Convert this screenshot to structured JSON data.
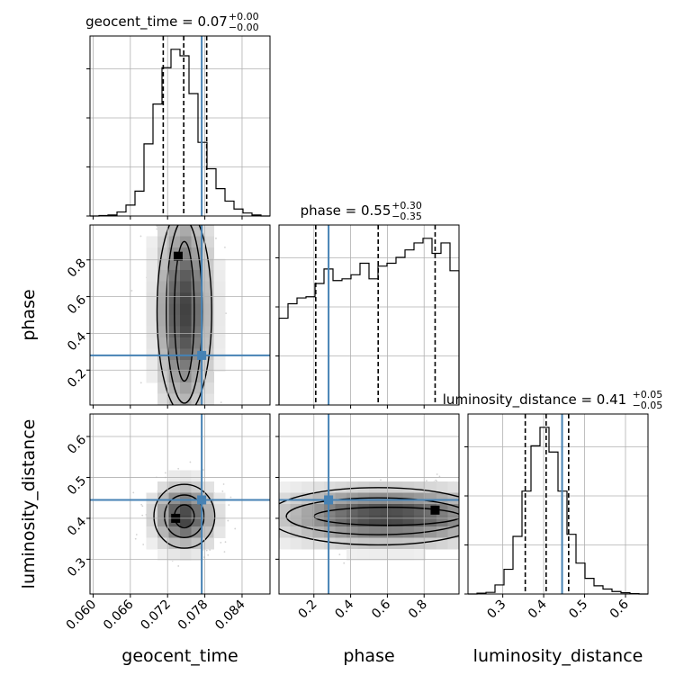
{
  "chart_data": {
    "type": "corner",
    "parameters": [
      {
        "name": "geocent_time",
        "range": [
          0.0595,
          0.0885
        ],
        "ticks": [
          0.06,
          0.066,
          0.072,
          0.078,
          0.084
        ],
        "tick_labels": [
          "0.060",
          "0.066",
          "0.072",
          "0.078",
          "0.084"
        ],
        "truth": 0.0775,
        "quantiles": [
          0.0713,
          0.0746,
          0.0783
        ],
        "median": 0.0746
      },
      {
        "name": "phase",
        "range": [
          0.01,
          0.99
        ],
        "ticks": [
          0.2,
          0.4,
          0.6,
          0.8
        ],
        "tick_labels": [
          "0.2",
          "0.4",
          "0.6",
          "0.8"
        ],
        "truth": 0.28,
        "quantiles": [
          0.21,
          0.55,
          0.86
        ],
        "median": 0.55
      },
      {
        "name": "luminosity_distance",
        "range": [
          0.215,
          0.655
        ],
        "ticks": [
          0.3,
          0.4,
          0.5,
          0.6
        ],
        "tick_labels": [
          "0.3",
          "0.4",
          "0.5",
          "0.6"
        ],
        "truth": 0.445,
        "quantiles": [
          0.355,
          0.406,
          0.461
        ],
        "median": 0.406
      }
    ],
    "titles": [
      {
        "label": "geocent_time = 0.07",
        "sup": "+0.00",
        "sub": "−0.00"
      },
      {
        "label": "phase = 0.55",
        "sup": "+0.30",
        "sub": "−0.35"
      },
      {
        "label": "luminosity_distance = 0.41",
        "sup": "+0.05",
        "sub": "−0.05"
      }
    ],
    "histograms": [
      {
        "param": "geocent_time",
        "edges": [
          0.0595,
          0.06095,
          0.0624,
          0.06385,
          0.0653,
          0.06675,
          0.0682,
          0.06965,
          0.0711,
          0.07255,
          0.074,
          0.07545,
          0.0769,
          0.07835,
          0.0798,
          0.08125,
          0.0827,
          0.08415,
          0.0856,
          0.08705,
          0.0885
        ],
        "values": [
          0,
          1,
          2,
          8,
          22,
          50,
          145,
          225,
          298,
          335,
          322,
          246,
          148,
          95,
          55,
          30,
          14,
          6,
          2,
          0
        ]
      },
      {
        "param": "phase",
        "edges": [
          0.01,
          0.059,
          0.108,
          0.157,
          0.206,
          0.255,
          0.304,
          0.353,
          0.402,
          0.451,
          0.5,
          0.549,
          0.598,
          0.647,
          0.696,
          0.745,
          0.794,
          0.843,
          0.892,
          0.941,
          0.99
        ],
        "values": [
          150,
          175,
          185,
          187,
          210,
          235,
          215,
          218,
          225,
          245,
          218,
          240,
          245,
          255,
          268,
          280,
          288,
          262,
          280,
          232
        ]
      },
      {
        "param": "luminosity_distance",
        "edges": [
          0.215,
          0.237,
          0.259,
          0.281,
          0.303,
          0.325,
          0.347,
          0.369,
          0.391,
          0.413,
          0.435,
          0.457,
          0.479,
          0.501,
          0.523,
          0.545,
          0.567,
          0.589,
          0.611,
          0.633,
          0.655
        ],
        "values": [
          0,
          2,
          4,
          22,
          60,
          140,
          250,
          360,
          405,
          345,
          250,
          145,
          75,
          38,
          20,
          12,
          6,
          3,
          1,
          0
        ]
      }
    ],
    "pairs": [
      {
        "x": "geocent_time",
        "y": "phase",
        "mode": [
          0.0737,
          0.82
        ],
        "contours": [
          {
            "x": 0.0747,
            "y": 0.52,
            "rx": 0.0016,
            "ry": 0.38
          },
          {
            "x": 0.0747,
            "y": 0.52,
            "rx": 0.0029,
            "ry": 0.5
          },
          {
            "x": 0.0747,
            "y": 0.52,
            "rx": 0.0044,
            "ry": 0.56
          }
        ]
      },
      {
        "x": "geocent_time",
        "y": "luminosity_distance",
        "mode": [
          0.0733,
          0.4
        ],
        "contours": [
          {
            "x": 0.0747,
            "y": 0.405,
            "rx": 0.0016,
            "ry": 0.028
          },
          {
            "x": 0.0747,
            "y": 0.405,
            "rx": 0.0032,
            "ry": 0.052
          },
          {
            "x": 0.0747,
            "y": 0.405,
            "rx": 0.0049,
            "ry": 0.078
          }
        ]
      },
      {
        "x": "phase",
        "y": "luminosity_distance",
        "mode": [
          0.86,
          0.42
        ],
        "contours": [
          {
            "x": 0.6,
            "y": 0.405,
            "rx": 0.4,
            "ry": 0.022
          },
          {
            "x": 0.55,
            "y": 0.405,
            "rx": 0.5,
            "ry": 0.045
          },
          {
            "x": 0.55,
            "y": 0.405,
            "rx": 0.6,
            "ry": 0.07
          }
        ]
      }
    ],
    "colors": {
      "truth": "#4682b4",
      "hist": "#000000",
      "grid": "#b0b0b0",
      "scatter": "#7f7f7f"
    },
    "grid": true
  }
}
